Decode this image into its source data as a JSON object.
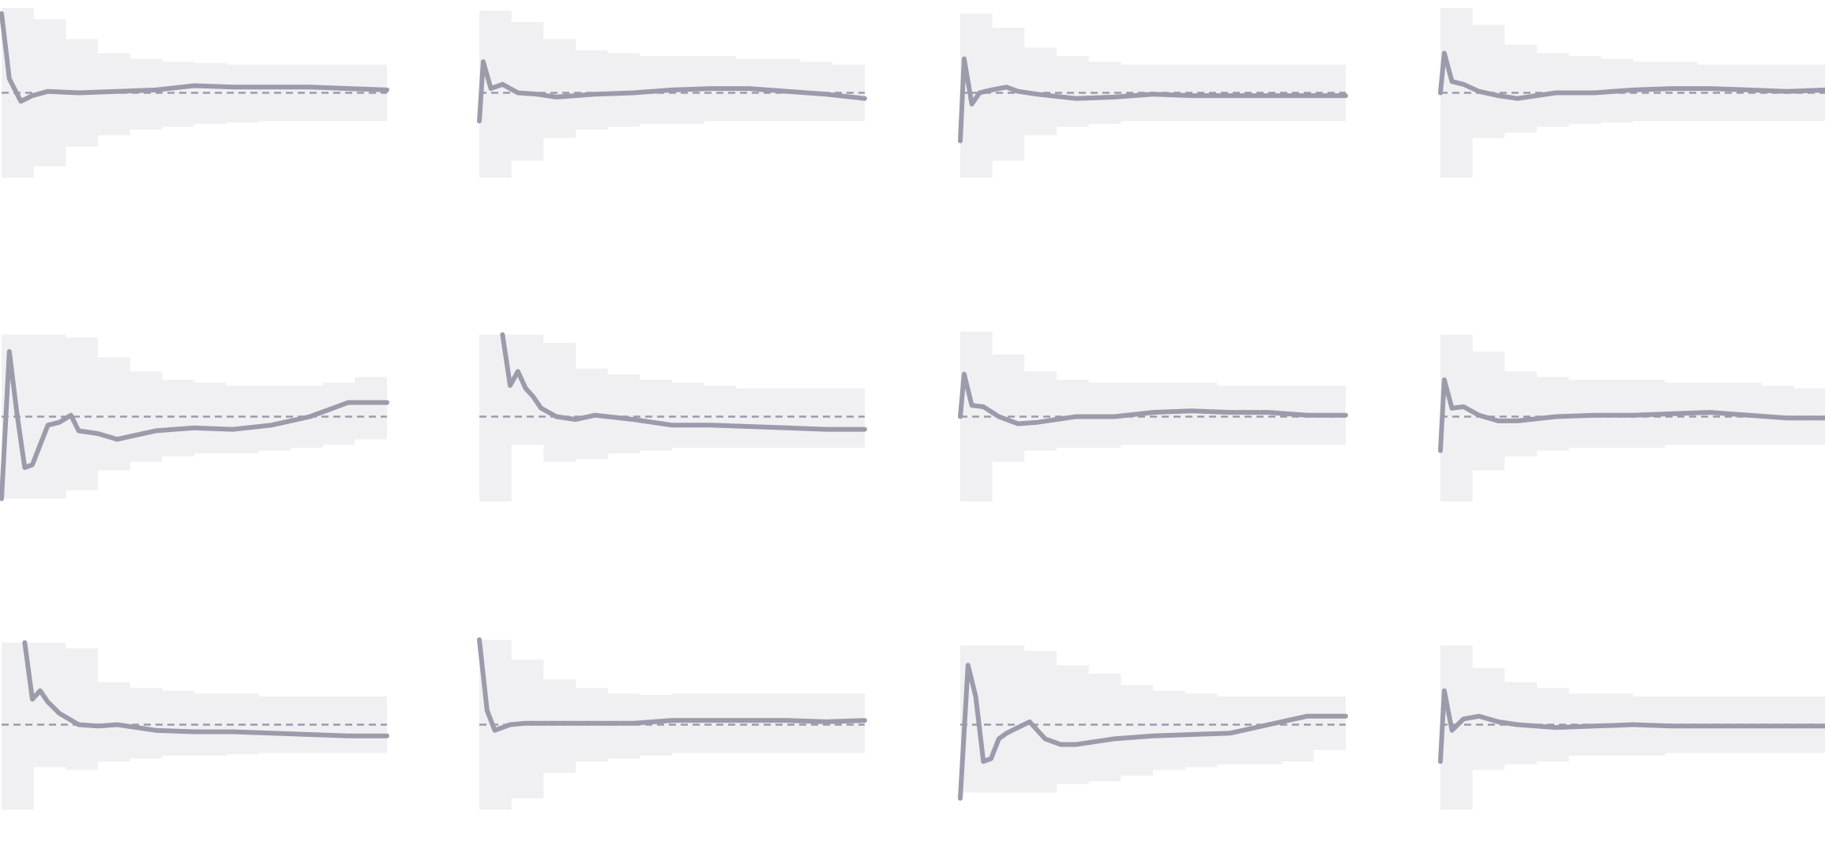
{
  "style": {
    "line_color": "#9b9bab",
    "band_color": "#f0f0f2",
    "ref_color": "#9b9bab"
  },
  "chart_data": [
    {
      "type": "line",
      "title": "",
      "xlabel": "",
      "ylabel": "",
      "grid": false,
      "legend": "none",
      "ylim": [
        -3,
        3
      ],
      "reference": 0,
      "band_upper": [
        3.0,
        2.6,
        1.9,
        1.4,
        1.2,
        1.1,
        1.05,
        1.0,
        1.0,
        1.0,
        1.0,
        1.0,
        1.0
      ],
      "band_lower": [
        -3.0,
        -2.6,
        -1.9,
        -1.5,
        -1.3,
        -1.2,
        -1.1,
        -1.05,
        -1.0,
        -1.0,
        -1.0,
        -1.0,
        -1.0
      ],
      "series": [
        {
          "x": [
            0,
            0.02,
            0.05,
            0.08,
            0.12,
            0.2,
            0.3,
            0.4,
            0.5,
            0.6,
            0.7,
            0.8,
            0.9,
            1.0
          ],
          "values": [
            2.8,
            0.5,
            -0.3,
            -0.1,
            0.05,
            0.0,
            0.05,
            0.1,
            0.25,
            0.2,
            0.2,
            0.2,
            0.15,
            0.1
          ]
        }
      ]
    },
    {
      "type": "line",
      "title": "",
      "xlabel": "",
      "ylabel": "",
      "grid": false,
      "legend": "none",
      "ylim": [
        -3,
        3
      ],
      "reference": 0,
      "band_upper": [
        2.9,
        2.5,
        1.9,
        1.5,
        1.4,
        1.3,
        1.3,
        1.3,
        1.2,
        1.2,
        1.1,
        1.0,
        0.9
      ],
      "band_lower": [
        -3.0,
        -2.4,
        -1.6,
        -1.3,
        -1.2,
        -1.1,
        -1.1,
        -1.0,
        -1.0,
        -1.0,
        -1.0,
        -1.0,
        -1.0
      ],
      "series": [
        {
          "x": [
            0,
            0.01,
            0.03,
            0.06,
            0.1,
            0.15,
            0.2,
            0.3,
            0.4,
            0.5,
            0.6,
            0.7,
            0.8,
            0.9,
            1.0
          ],
          "values": [
            -1.0,
            1.1,
            0.15,
            0.3,
            0.0,
            -0.05,
            -0.15,
            -0.05,
            0.0,
            0.1,
            0.15,
            0.15,
            0.05,
            -0.05,
            -0.2
          ]
        }
      ]
    },
    {
      "type": "line",
      "title": "",
      "xlabel": "",
      "ylabel": "",
      "grid": false,
      "legend": "none",
      "ylim": [
        -3,
        3
      ],
      "reference": 0,
      "band_upper": [
        2.8,
        2.3,
        1.6,
        1.3,
        1.1,
        1.0,
        1.0,
        1.0,
        1.0,
        1.0,
        1.0,
        1.0,
        1.0
      ],
      "band_lower": [
        -3.0,
        -2.4,
        -1.5,
        -1.2,
        -1.1,
        -1.0,
        -1.0,
        -1.0,
        -1.0,
        -1.0,
        -1.0,
        -1.0,
        -1.0
      ],
      "series": [
        {
          "x": [
            0,
            0.01,
            0.03,
            0.05,
            0.08,
            0.12,
            0.15,
            0.2,
            0.3,
            0.4,
            0.5,
            0.6,
            0.7,
            0.8,
            0.9,
            1.0
          ],
          "values": [
            -1.7,
            1.2,
            -0.4,
            0.0,
            0.1,
            0.2,
            0.05,
            -0.05,
            -0.2,
            -0.15,
            -0.05,
            -0.1,
            -0.1,
            -0.1,
            -0.1,
            -0.1
          ]
        }
      ]
    },
    {
      "type": "line",
      "title": "",
      "xlabel": "",
      "ylabel": "",
      "grid": false,
      "legend": "none",
      "ylim": [
        -3,
        3
      ],
      "reference": 0,
      "band_upper": [
        3.0,
        2.4,
        1.7,
        1.4,
        1.3,
        1.2,
        1.1,
        1.1,
        1.0,
        1.0,
        1.0,
        1.0,
        1.0
      ],
      "band_lower": [
        -3.0,
        -1.6,
        -1.4,
        -1.2,
        -1.1,
        -1.05,
        -1.0,
        -1.0,
        -1.0,
        -1.0,
        -1.0,
        -1.0,
        -1.0
      ],
      "series": [
        {
          "x": [
            0,
            0.01,
            0.03,
            0.06,
            0.1,
            0.15,
            0.2,
            0.3,
            0.4,
            0.5,
            0.6,
            0.7,
            0.8,
            0.9,
            1.0
          ],
          "values": [
            0.0,
            1.4,
            0.4,
            0.3,
            0.05,
            -0.1,
            -0.2,
            0.0,
            0.0,
            0.1,
            0.15,
            0.15,
            0.1,
            0.05,
            0.1
          ]
        }
      ]
    },
    {
      "type": "line",
      "title": "",
      "xlabel": "",
      "ylabel": "",
      "grid": false,
      "legend": "none",
      "ylim": [
        -3,
        3
      ],
      "reference": 0,
      "band_upper": [
        2.9,
        2.9,
        2.8,
        2.1,
        1.6,
        1.3,
        1.2,
        1.1,
        1.1,
        1.1,
        1.2,
        1.4,
        1.5
      ],
      "band_lower": [
        -2.9,
        -2.9,
        -2.6,
        -1.9,
        -1.6,
        -1.4,
        -1.3,
        -1.3,
        -1.2,
        -1.1,
        -1.0,
        -0.8,
        -0.7
      ],
      "series": [
        {
          "x": [
            0,
            0.02,
            0.04,
            0.06,
            0.08,
            0.1,
            0.12,
            0.15,
            0.18,
            0.2,
            0.25,
            0.3,
            0.4,
            0.5,
            0.6,
            0.7,
            0.8,
            0.9,
            1.0
          ],
          "values": [
            -2.9,
            2.3,
            0.1,
            -1.8,
            -1.7,
            -1.0,
            -0.3,
            -0.2,
            0.05,
            -0.5,
            -0.6,
            -0.8,
            -0.5,
            -0.4,
            -0.45,
            -0.3,
            0.0,
            0.5,
            0.5
          ]
        }
      ]
    },
    {
      "type": "line",
      "title": "",
      "xlabel": "",
      "ylabel": "",
      "grid": false,
      "legend": "none",
      "ylim": [
        -3,
        3
      ],
      "reference": 0,
      "band_upper": [
        2.9,
        2.9,
        2.6,
        1.7,
        1.5,
        1.3,
        1.2,
        1.1,
        1.0,
        1.0,
        1.0,
        1.0,
        1.0
      ],
      "band_lower": [
        -3.0,
        -1.0,
        -1.6,
        -1.5,
        -1.3,
        -1.2,
        -1.1,
        -1.1,
        -1.1,
        -1.1,
        -1.1,
        -1.1,
        -1.1
      ],
      "series": [
        {
          "x": [
            0.06,
            0.08,
            0.1,
            0.12,
            0.14,
            0.16,
            0.2,
            0.25,
            0.3,
            0.4,
            0.5,
            0.6,
            0.7,
            0.8,
            0.9,
            1.0
          ],
          "values": [
            2.9,
            1.1,
            1.6,
            1.0,
            0.7,
            0.3,
            0.0,
            -0.1,
            0.05,
            -0.1,
            -0.3,
            -0.3,
            -0.35,
            -0.4,
            -0.45,
            -0.45
          ]
        }
      ]
    },
    {
      "type": "line",
      "title": "",
      "xlabel": "",
      "ylabel": "",
      "grid": false,
      "legend": "none",
      "ylim": [
        -3,
        3
      ],
      "reference": 0,
      "band_upper": [
        3.0,
        2.2,
        1.6,
        1.3,
        1.2,
        1.2,
        1.2,
        1.2,
        1.1,
        1.1,
        1.1,
        1.1,
        1.1
      ],
      "band_lower": [
        -3.0,
        -1.6,
        -1.2,
        -1.1,
        -1.1,
        -1.0,
        -1.0,
        -1.0,
        -1.0,
        -1.0,
        -1.0,
        -1.0,
        -1.0
      ],
      "series": [
        {
          "x": [
            0,
            0.01,
            0.03,
            0.06,
            0.1,
            0.15,
            0.2,
            0.3,
            0.4,
            0.5,
            0.6,
            0.7,
            0.8,
            0.9,
            1.0
          ],
          "values": [
            0.0,
            1.5,
            0.4,
            0.35,
            0.0,
            -0.25,
            -0.2,
            0.0,
            0.0,
            0.15,
            0.2,
            0.15,
            0.15,
            0.05,
            0.05
          ]
        }
      ]
    },
    {
      "type": "line",
      "title": "",
      "xlabel": "",
      "ylabel": "",
      "grid": false,
      "legend": "none",
      "ylim": [
        -3,
        3
      ],
      "reference": 0,
      "band_upper": [
        2.9,
        2.3,
        1.6,
        1.4,
        1.3,
        1.3,
        1.3,
        1.2,
        1.2,
        1.2,
        1.1,
        1.0,
        1.0
      ],
      "band_lower": [
        -3.0,
        -1.9,
        -1.4,
        -1.2,
        -1.1,
        -1.1,
        -1.1,
        -1.0,
        -1.0,
        -1.0,
        -1.0,
        -1.0,
        -1.0
      ],
      "series": [
        {
          "x": [
            0,
            0.01,
            0.03,
            0.06,
            0.1,
            0.15,
            0.2,
            0.3,
            0.4,
            0.5,
            0.6,
            0.7,
            0.8,
            0.9,
            1.0
          ],
          "values": [
            -1.2,
            1.3,
            0.3,
            0.35,
            0.05,
            -0.15,
            -0.15,
            0.0,
            0.05,
            0.05,
            0.1,
            0.15,
            0.05,
            -0.05,
            -0.05
          ]
        }
      ]
    },
    {
      "type": "line",
      "title": "",
      "xlabel": "",
      "ylabel": "",
      "grid": false,
      "legend": "none",
      "ylim": [
        -3,
        3
      ],
      "reference": 0,
      "band_upper": [
        2.9,
        2.9,
        2.7,
        1.5,
        1.3,
        1.2,
        1.1,
        1.1,
        1.0,
        1.0,
        1.0,
        1.0,
        1.0
      ],
      "band_lower": [
        -3.0,
        -1.5,
        -1.6,
        -1.3,
        -1.2,
        -1.1,
        -1.1,
        -1.05,
        -1.0,
        -1.0,
        -1.0,
        -1.0,
        -1.0
      ],
      "series": [
        {
          "x": [
            0.06,
            0.08,
            0.1,
            0.12,
            0.15,
            0.2,
            0.25,
            0.3,
            0.4,
            0.5,
            0.6,
            0.7,
            0.8,
            0.9,
            1.0
          ],
          "values": [
            2.9,
            0.9,
            1.2,
            0.8,
            0.4,
            0.0,
            -0.05,
            0.0,
            -0.2,
            -0.25,
            -0.25,
            -0.3,
            -0.35,
            -0.4,
            -0.4
          ]
        }
      ]
    },
    {
      "type": "line",
      "title": "",
      "xlabel": "",
      "ylabel": "",
      "grid": false,
      "legend": "none",
      "ylim": [
        -3,
        3
      ],
      "reference": 0,
      "band_upper": [
        3.0,
        2.3,
        1.6,
        1.3,
        1.1,
        1.05,
        1.1,
        1.1,
        1.1,
        1.1,
        1.1,
        1.1,
        1.1
      ],
      "band_lower": [
        -3.0,
        -2.6,
        -1.7,
        -1.3,
        -1.2,
        -1.1,
        -1.0,
        -1.0,
        -1.0,
        -1.0,
        -1.0,
        -1.0,
        -1.0
      ],
      "series": [
        {
          "x": [
            0,
            0.02,
            0.04,
            0.06,
            0.08,
            0.12,
            0.2,
            0.3,
            0.4,
            0.5,
            0.6,
            0.7,
            0.8,
            0.9,
            1.0
          ],
          "values": [
            3.0,
            0.5,
            -0.2,
            -0.1,
            0.0,
            0.05,
            0.05,
            0.05,
            0.05,
            0.15,
            0.15,
            0.15,
            0.15,
            0.1,
            0.15
          ]
        }
      ]
    },
    {
      "type": "line",
      "title": "",
      "xlabel": "",
      "ylabel": "",
      "grid": false,
      "legend": "none",
      "ylim": [
        -3,
        3
      ],
      "reference": 0,
      "band_upper": [
        2.8,
        2.8,
        2.6,
        2.1,
        1.8,
        1.4,
        1.2,
        1.1,
        1.0,
        1.0,
        1.0,
        1.0,
        1.2
      ],
      "band_lower": [
        -2.4,
        -2.4,
        -2.4,
        -2.1,
        -2.0,
        -1.8,
        -1.6,
        -1.5,
        -1.4,
        -1.4,
        -1.3,
        -0.9,
        -0.7
      ],
      "series": [
        {
          "x": [
            0,
            0.02,
            0.04,
            0.06,
            0.08,
            0.1,
            0.12,
            0.15,
            0.18,
            0.22,
            0.26,
            0.3,
            0.4,
            0.5,
            0.6,
            0.7,
            0.8,
            0.9,
            1.0
          ],
          "values": [
            -2.6,
            2.1,
            1.0,
            -1.3,
            -1.2,
            -0.5,
            -0.3,
            -0.1,
            0.1,
            -0.5,
            -0.7,
            -0.7,
            -0.5,
            -0.4,
            -0.35,
            -0.3,
            0.0,
            0.3,
            0.3
          ]
        }
      ]
    },
    {
      "type": "line",
      "title": "",
      "xlabel": "",
      "ylabel": "",
      "grid": false,
      "legend": "none",
      "ylim": [
        -3,
        3
      ],
      "reference": 0,
      "band_upper": [
        2.8,
        2.0,
        1.5,
        1.3,
        1.1,
        1.1,
        1.0,
        1.0,
        1.0,
        1.0,
        1.0,
        1.0,
        1.0
      ],
      "band_lower": [
        -3.0,
        -1.6,
        -1.4,
        -1.3,
        -1.1,
        -1.1,
        -1.1,
        -1.0,
        -1.0,
        -1.0,
        -1.0,
        -1.0,
        -1.0
      ],
      "series": [
        {
          "x": [
            0,
            0.01,
            0.03,
            0.06,
            0.1,
            0.15,
            0.2,
            0.3,
            0.4,
            0.5,
            0.6,
            0.7,
            0.8,
            0.9,
            1.0
          ],
          "values": [
            -1.3,
            1.2,
            -0.2,
            0.2,
            0.3,
            0.1,
            0.0,
            -0.1,
            -0.05,
            0.0,
            -0.05,
            -0.05,
            -0.05,
            -0.05,
            -0.05
          ]
        }
      ]
    }
  ]
}
